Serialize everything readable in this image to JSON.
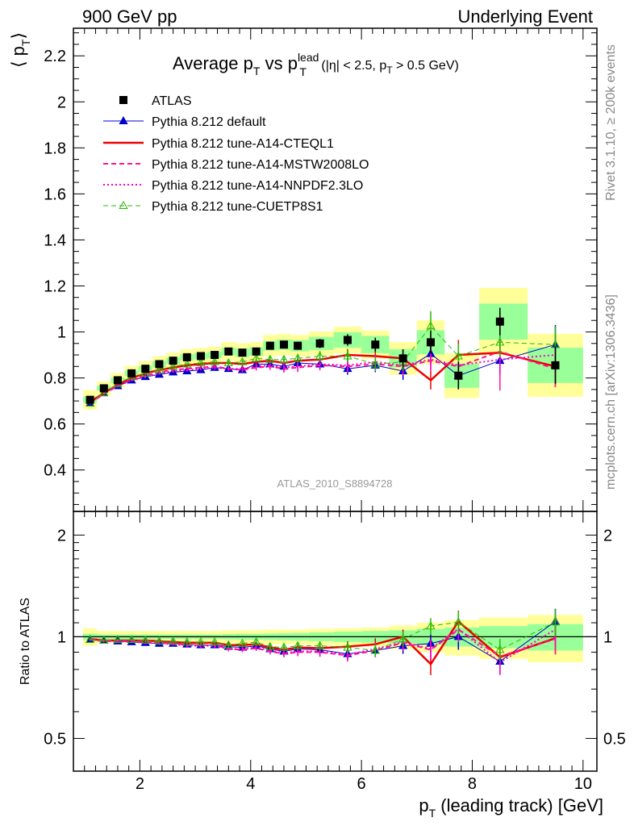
{
  "header": {
    "left": "900 GeV pp",
    "right": "Underlying Event"
  },
  "side_text": {
    "rivet": "Rivet 3.1.10, ≥ 200k events",
    "mcplots": "mcplots.cern.ch [arXiv:1306.3436]"
  },
  "plot_title": {
    "main": "Average p",
    "sub_t": "T",
    "vs": " vs p",
    "sup_lead": "lead",
    "sub_t2": "T",
    "cuts_a": " (|η| < 2.5, p",
    "cuts_sub": "T",
    "cuts_b": " > 0.5 GeV)"
  },
  "analysis_id": "ATLAS_2010_S8894728",
  "ylabel_main": {
    "open": "⟨ p",
    "sub": "T",
    "close": "⟩"
  },
  "ylabel_ratio": "Ratio to ATLAS",
  "xlabel": {
    "p": "p",
    "sub": "T",
    "rest": " (leading track) [GeV]"
  },
  "colors": {
    "data": "#000000",
    "default": "#0000cc",
    "cteql1": "#ee0000",
    "mstw": "#ff1493",
    "nnpdf": "#ff00cc",
    "cuetp8s1": "#22bb00",
    "band_yellow": "#ffff99",
    "band_green": "#99ff99"
  },
  "chart_data": {
    "type": "line",
    "x": [
      1.1,
      1.35,
      1.6,
      1.85,
      2.1,
      2.35,
      2.6,
      2.85,
      3.1,
      3.35,
      3.6,
      3.85,
      4.1,
      4.35,
      4.6,
      4.85,
      5.25,
      5.75,
      6.25,
      6.75,
      7.25,
      7.75,
      8.5,
      9.5
    ],
    "xlim": [
      0.8,
      10.25
    ],
    "ylim_main": [
      0.22,
      2.32
    ],
    "ylim_ratio": [
      0.4,
      2.35
    ],
    "ratio_scale": "log",
    "x_ticks": [
      2,
      4,
      6,
      8,
      10
    ],
    "y_ticks_main": [
      0.4,
      0.6,
      0.8,
      1,
      1.2,
      1.4,
      1.6,
      1.8,
      2,
      2.2
    ],
    "y_ticks_ratio": [
      0.5,
      1,
      2
    ],
    "data": {
      "name": "ATLAS",
      "values": [
        0.705,
        0.755,
        0.79,
        0.82,
        0.84,
        0.86,
        0.875,
        0.89,
        0.895,
        0.9,
        0.915,
        0.91,
        0.915,
        0.94,
        0.945,
        0.94,
        0.95,
        0.965,
        0.945,
        0.885,
        0.955,
        0.81,
        1.045,
        0.855
      ],
      "errors": [
        0.005,
        0.005,
        0.005,
        0.005,
        0.005,
        0.005,
        0.006,
        0.006,
        0.007,
        0.008,
        0.009,
        0.01,
        0.012,
        0.014,
        0.015,
        0.017,
        0.02,
        0.025,
        0.03,
        0.04,
        0.05,
        0.06,
        0.06,
        0.08
      ],
      "band_yellow": [
        0.06,
        0.04,
        0.04,
        0.04,
        0.04,
        0.04,
        0.04,
        0.04,
        0.04,
        0.04,
        0.045,
        0.045,
        0.045,
        0.05,
        0.05,
        0.05,
        0.055,
        0.06,
        0.065,
        0.08,
        0.1,
        0.12,
        0.14,
        0.16
      ],
      "band_green": [
        0.02,
        0.015,
        0.015,
        0.015,
        0.015,
        0.015,
        0.015,
        0.015,
        0.015,
        0.015,
        0.018,
        0.02,
        0.02,
        0.022,
        0.024,
        0.026,
        0.03,
        0.035,
        0.04,
        0.045,
        0.055,
        0.065,
        0.075,
        0.09
      ]
    },
    "series": [
      {
        "name": "Pythia 8.212 default",
        "key": "default",
        "style": "solid",
        "marker": "triangle-filled",
        "width": 1,
        "values": [
          0.69,
          0.735,
          0.765,
          0.79,
          0.805,
          0.815,
          0.825,
          0.83,
          0.835,
          0.845,
          0.84,
          0.835,
          0.86,
          0.86,
          0.85,
          0.865,
          0.86,
          0.84,
          0.855,
          0.83,
          0.905,
          0.81,
          0.875,
          0.945
        ],
        "errors": [
          0.005,
          0.005,
          0.005,
          0.005,
          0.006,
          0.006,
          0.007,
          0.007,
          0.008,
          0.009,
          0.01,
          0.011,
          0.013,
          0.015,
          0.017,
          0.019,
          0.022,
          0.026,
          0.03,
          0.038,
          0.045,
          0.055,
          0.06,
          0.085
        ]
      },
      {
        "name": "Pythia 8.212 tune-A14-CTEQL1",
        "key": "cteql1",
        "style": "solid",
        "marker": "none",
        "width": 2.5,
        "values": [
          0.695,
          0.735,
          0.77,
          0.8,
          0.82,
          0.835,
          0.845,
          0.855,
          0.86,
          0.865,
          0.865,
          0.86,
          0.87,
          0.875,
          0.865,
          0.875,
          0.88,
          0.9,
          0.895,
          0.885,
          0.79,
          0.9,
          0.91,
          0.85
        ],
        "errors": [
          0.005,
          0.005,
          0.005,
          0.005,
          0.006,
          0.006,
          0.007,
          0.007,
          0.008,
          0.009,
          0.01,
          0.011,
          0.013,
          0.015,
          0.017,
          0.019,
          0.022,
          0.026,
          0.03,
          0.038,
          0.04,
          0.065,
          0.06,
          0.09
        ]
      },
      {
        "name": "Pythia 8.212 tune-A14-MSTW2008LO",
        "key": "mstw",
        "style": "dashed",
        "marker": "none",
        "width": 2,
        "values": [
          0.69,
          0.73,
          0.765,
          0.795,
          0.81,
          0.825,
          0.835,
          0.84,
          0.845,
          0.85,
          0.84,
          0.835,
          0.845,
          0.85,
          0.84,
          0.845,
          0.855,
          0.85,
          0.86,
          0.85,
          0.875,
          0.85,
          0.915,
          0.84
        ],
        "errors": [
          0.005,
          0.005,
          0.005,
          0.005,
          0.006,
          0.006,
          0.007,
          0.007,
          0.008,
          0.009,
          0.01,
          0.011,
          0.013,
          0.015,
          0.017,
          0.019,
          0.022,
          0.026,
          0.03,
          0.038,
          0.045,
          0.055,
          0.17,
          0.08
        ]
      },
      {
        "name": "Pythia 8.212 tune-A14-NNPDF2.3LO",
        "key": "nnpdf",
        "style": "dotted",
        "marker": "none",
        "width": 2,
        "values": [
          0.69,
          0.735,
          0.765,
          0.79,
          0.805,
          0.82,
          0.83,
          0.835,
          0.84,
          0.845,
          0.84,
          0.84,
          0.85,
          0.855,
          0.845,
          0.85,
          0.86,
          0.855,
          0.87,
          0.855,
          0.88,
          0.855,
          0.88,
          0.9
        ],
        "errors": [
          0.005,
          0.005,
          0.005,
          0.005,
          0.006,
          0.006,
          0.007,
          0.007,
          0.008,
          0.009,
          0.01,
          0.011,
          0.013,
          0.015,
          0.017,
          0.019,
          0.022,
          0.026,
          0.03,
          0.038,
          0.045,
          0.055,
          0.06,
          0.08
        ]
      },
      {
        "name": "Pythia 8.212 tune-CUETP8S1",
        "key": "cuetp8s1",
        "style": "dashed",
        "marker": "triangle-open",
        "width": 1,
        "values": [
          0.69,
          0.735,
          0.775,
          0.805,
          0.82,
          0.835,
          0.85,
          0.86,
          0.865,
          0.87,
          0.865,
          0.87,
          0.885,
          0.88,
          0.88,
          0.885,
          0.895,
          0.895,
          0.86,
          0.87,
          1.025,
          0.895,
          0.955,
          0.945
        ],
        "errors": [
          0.005,
          0.005,
          0.005,
          0.005,
          0.006,
          0.006,
          0.007,
          0.007,
          0.008,
          0.009,
          0.01,
          0.011,
          0.013,
          0.015,
          0.017,
          0.019,
          0.022,
          0.026,
          0.03,
          0.038,
          0.065,
          0.055,
          0.06,
          0.08
        ]
      }
    ],
    "ratio": {
      "default": [
        0.98,
        0.975,
        0.97,
        0.965,
        0.96,
        0.955,
        0.955,
        0.95,
        0.945,
        0.945,
        0.935,
        0.93,
        0.94,
        0.92,
        0.905,
        0.92,
        0.915,
        0.89,
        0.91,
        0.94,
        0.955,
        1.0,
        0.845,
        1.11
      ],
      "cteql1": [
        0.985,
        0.975,
        0.975,
        0.975,
        0.975,
        0.97,
        0.965,
        0.96,
        0.96,
        0.96,
        0.945,
        0.945,
        0.95,
        0.93,
        0.915,
        0.93,
        0.925,
        0.935,
        0.95,
        1.0,
        0.83,
        1.11,
        0.87,
        0.99
      ],
      "mstw": [
        0.98,
        0.97,
        0.97,
        0.97,
        0.965,
        0.96,
        0.955,
        0.945,
        0.945,
        0.945,
        0.92,
        0.915,
        0.925,
        0.905,
        0.89,
        0.9,
        0.9,
        0.88,
        0.91,
        0.96,
        0.915,
        1.05,
        0.875,
        0.985
      ],
      "nnpdf": [
        0.98,
        0.975,
        0.97,
        0.965,
        0.96,
        0.955,
        0.95,
        0.94,
        0.94,
        0.94,
        0.92,
        0.92,
        0.93,
        0.91,
        0.895,
        0.905,
        0.905,
        0.885,
        0.92,
        0.965,
        0.92,
        1.055,
        0.84,
        1.05
      ],
      "cuetp8s1": [
        0.98,
        0.975,
        0.98,
        0.98,
        0.975,
        0.97,
        0.97,
        0.965,
        0.965,
        0.965,
        0.945,
        0.955,
        0.965,
        0.935,
        0.93,
        0.94,
        0.94,
        0.93,
        0.91,
        0.985,
        1.075,
        1.105,
        0.915,
        1.105
      ]
    },
    "ratio_errors": [
      0.008,
      0.008,
      0.008,
      0.008,
      0.009,
      0.009,
      0.01,
      0.011,
      0.012,
      0.013,
      0.014,
      0.015,
      0.017,
      0.019,
      0.021,
      0.024,
      0.028,
      0.035,
      0.04,
      0.05,
      0.06,
      0.085,
      0.07,
      0.1
    ]
  }
}
